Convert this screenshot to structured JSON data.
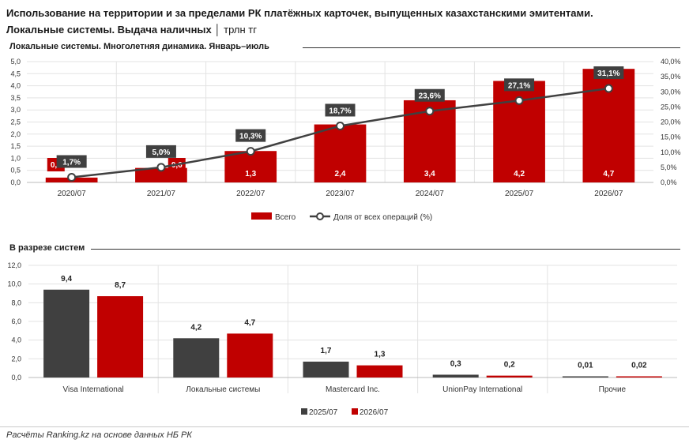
{
  "header": {
    "title_line1": "Использование на территории и за пределами РК платёжных карточек, выпущенных казахстанскими эмитентами.",
    "title_line2": "Локальные системы. Выдача наличных",
    "title_unit": "трлн тг"
  },
  "chart_data": [
    {
      "type": "bar",
      "subtitle": "Локальные системы. Многолетняя динамика. Январь–июль",
      "categories": [
        "2020/07",
        "2021/07",
        "2022/07",
        "2023/07",
        "2024/07",
        "2025/07",
        "2026/07"
      ],
      "series": [
        {
          "name": "Всего",
          "type": "bar",
          "axis": "left",
          "values": [
            0.2,
            0.6,
            1.3,
            2.4,
            3.4,
            4.2,
            4.7
          ],
          "labels": [
            "0,2",
            "0,6",
            "1,3",
            "2,4",
            "3,4",
            "4,2",
            "4,7"
          ],
          "color": "#c00000"
        },
        {
          "name": "Доля от всех операций (%)",
          "type": "line",
          "axis": "right",
          "values": [
            1.7,
            5.0,
            10.3,
            18.7,
            23.6,
            27.1,
            31.1
          ],
          "labels": [
            "1,7%",
            "5,0%",
            "10,3%",
            "18,7%",
            "23,6%",
            "27,1%",
            "31,1%"
          ],
          "color": "#404040"
        }
      ],
      "ylim": [
        0,
        5
      ],
      "y_ticks": [
        "0,0",
        "0,5",
        "1,0",
        "1,5",
        "2,0",
        "2,5",
        "3,0",
        "3,5",
        "4,0",
        "4,5",
        "5,0"
      ],
      "y2lim": [
        0,
        40
      ],
      "y2_ticks": [
        "0,0%",
        "5,0%",
        "10,0%",
        "15,0%",
        "20,0%",
        "25,0%",
        "30,0%",
        "35,0%",
        "40,0%"
      ],
      "grid": true,
      "legend_position": "bottom"
    },
    {
      "type": "bar",
      "subtitle": "В разрезе систем",
      "categories": [
        "Visa International",
        "Локальные системы",
        "Mastercard Inc.",
        "UnionPay International",
        "Прочие"
      ],
      "series": [
        {
          "name": "2025/07",
          "values": [
            9.4,
            4.2,
            1.7,
            0.3,
            0.01
          ],
          "labels": [
            "9,4",
            "4,2",
            "1,7",
            "0,3",
            "0,01"
          ],
          "color": "#404040"
        },
        {
          "name": "2026/07",
          "values": [
            8.7,
            4.7,
            1.3,
            0.2,
            0.02
          ],
          "labels": [
            "8,7",
            "4,7",
            "1,3",
            "0,2",
            "0,02"
          ],
          "color": "#c00000"
        }
      ],
      "ylim": [
        0,
        12
      ],
      "y_ticks": [
        "0,0",
        "2,0",
        "4,0",
        "6,0",
        "8,0",
        "10,0",
        "12,0"
      ],
      "grid": true,
      "legend_position": "bottom"
    }
  ],
  "footer": {
    "source": "Расчёты Ranking.kz на основе данных НБ РК"
  }
}
